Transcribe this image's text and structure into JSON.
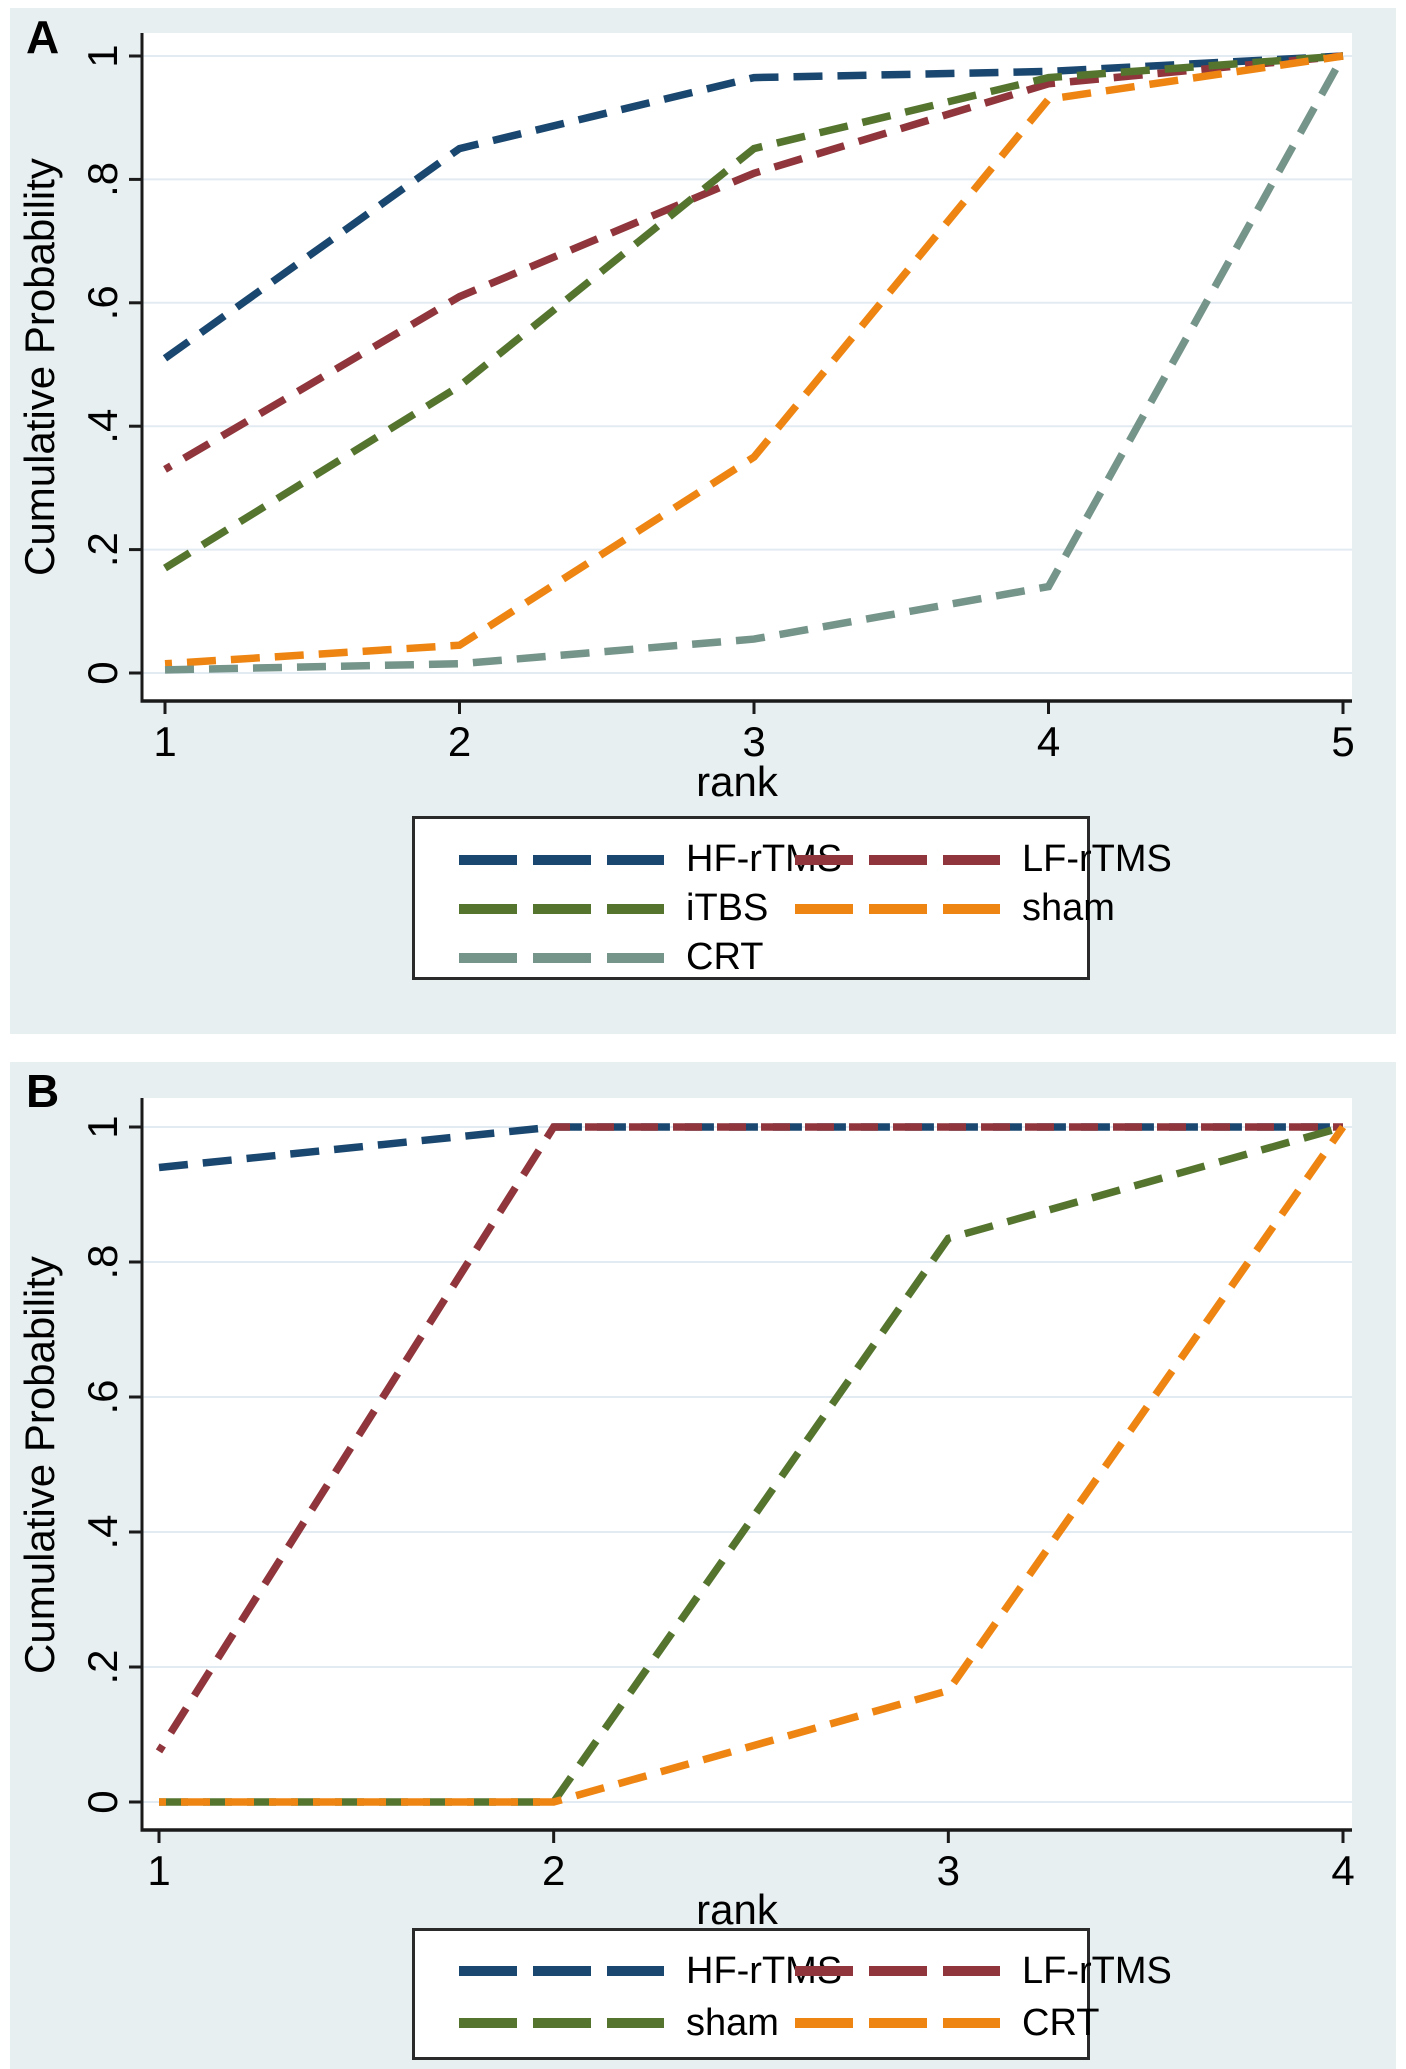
{
  "figure": {
    "background_color": "#e8eff1",
    "plot_background": "#ffffff",
    "gridline_color": "#e3ebf2",
    "axis_color": "#1a1a1a"
  },
  "chart_data": [
    {
      "type": "line",
      "panel_label": "A",
      "xlabel": "rank",
      "ylabel": "Cumulative Probability",
      "line_style": "dashed",
      "grid": "horizontal",
      "legend_position": "below-plot, boxed, 2 columns",
      "x": [
        1,
        2,
        3,
        4,
        5
      ],
      "x_tick_labels": [
        "1",
        "2",
        "3",
        "4",
        "5"
      ],
      "xlim": [
        1,
        5
      ],
      "ylim": [
        0,
        1
      ],
      "y_tick_values": [
        0,
        0.2,
        0.4,
        0.6,
        0.8,
        1
      ],
      "y_tick_labels": [
        "0",
        ".2",
        ".4",
        ".6",
        ".8",
        "1"
      ],
      "series": [
        {
          "name": "HF-rTMS",
          "color": "#1a476f",
          "values": [
            0.51,
            0.85,
            0.965,
            0.975,
            1.0
          ]
        },
        {
          "name": "LF-rTMS",
          "color": "#90353b",
          "values": [
            0.33,
            0.61,
            0.81,
            0.955,
            1.0
          ]
        },
        {
          "name": "iTBS",
          "color": "#55752f",
          "values": [
            0.17,
            0.465,
            0.85,
            0.965,
            1.0
          ]
        },
        {
          "name": "sham",
          "color": "#ee8512",
          "values": [
            0.015,
            0.045,
            0.35,
            0.93,
            1.0
          ]
        },
        {
          "name": "CRT",
          "color": "#75948a",
          "values": [
            0.005,
            0.015,
            0.055,
            0.14,
            1.0
          ]
        }
      ]
    },
    {
      "type": "line",
      "panel_label": "B",
      "xlabel": "rank",
      "ylabel": "Cumulative Probability",
      "line_style": "dashed",
      "grid": "horizontal",
      "legend_position": "below-plot, boxed, 2 columns",
      "x": [
        1,
        2,
        3,
        4
      ],
      "x_tick_labels": [
        "1",
        "2",
        "3",
        "4"
      ],
      "xlim": [
        1,
        4
      ],
      "ylim": [
        0,
        1
      ],
      "y_tick_values": [
        0,
        0.2,
        0.4,
        0.6,
        0.8,
        1
      ],
      "y_tick_labels": [
        "0",
        ".2",
        ".4",
        ".6",
        ".8",
        "1"
      ],
      "series": [
        {
          "name": "HF-rTMS",
          "color": "#1a476f",
          "values": [
            0.94,
            1.0,
            1.0,
            1.0
          ]
        },
        {
          "name": "LF-rTMS",
          "color": "#90353b",
          "values": [
            0.075,
            1.0,
            1.0,
            1.0
          ]
        },
        {
          "name": "sham",
          "color": "#55752f",
          "values": [
            0.0,
            0.0,
            0.835,
            1.0
          ]
        },
        {
          "name": "CRT",
          "color": "#ee8512",
          "values": [
            0.0,
            0.0,
            0.165,
            1.0
          ]
        }
      ]
    }
  ]
}
